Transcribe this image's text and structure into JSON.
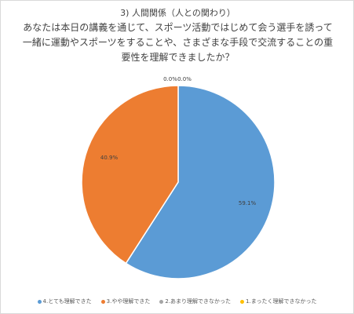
{
  "chart_data": {
    "type": "pie",
    "title_lines": [
      "3) 人間関係（人との関わり）",
      "あなたは本日の講義を通じて、スポーツ活動ではじめて会う選手を誘って",
      "一緒に運動やスポーツをすることや、さまざまな手段で交流することの重",
      "要性を理解できましたか？"
    ],
    "categories": [
      "4.とても理解できた",
      "3.やや理解できた",
      "2.あまり理解できなかった",
      "1.まったく理解できなかった"
    ],
    "values": [
      59.1,
      40.9,
      0.0,
      0.0
    ],
    "labels": [
      "59.1%",
      "40.9%",
      "0.0%",
      "0.0%"
    ],
    "colors": [
      "#5b9bd5",
      "#ed7d31",
      "#a5a5a5",
      "#ffc000"
    ],
    "legend_position": "bottom"
  }
}
